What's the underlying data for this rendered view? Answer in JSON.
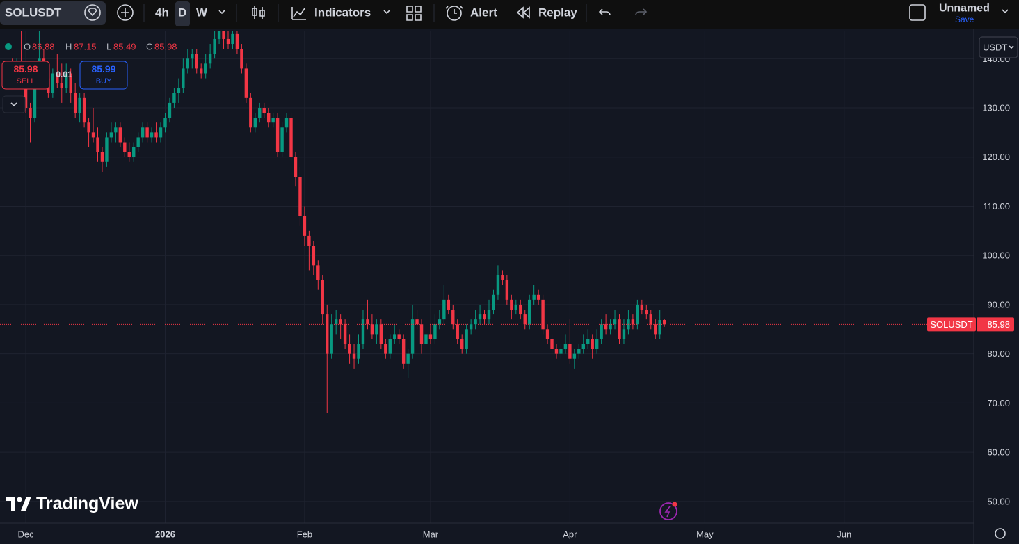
{
  "toolbar": {
    "symbol": "SOLUSDT",
    "intervals": [
      "4h",
      "D",
      "W"
    ],
    "indicators": "Indicators",
    "alert": "Alert",
    "replay": "Replay",
    "layout_name": "Unnamed",
    "save": "Save"
  },
  "legend": {
    "labels": [
      "O",
      "H",
      "L",
      "C"
    ]
  },
  "trade": {
    "sell_price": "85.98",
    "sell": "SELL",
    "spread": "0.01",
    "buy_price": "85.99",
    "buy": "BUY"
  },
  "currency": "USDT",
  "price_label": "SOLUSDT",
  "logo": "TradingView",
  "chart_data": {
    "type": "candlestick",
    "up_color": "#089981",
    "down_color": "#f23645",
    "xlim": [
      -0.73,
      215.8
    ],
    "ylim": [
      45.6,
      145.55
    ],
    "grid": true,
    "xticks": [
      {
        "value": 5,
        "label": "Dec"
      },
      {
        "value": 36,
        "label": "2026"
      },
      {
        "value": 67,
        "label": "Feb"
      },
      {
        "value": 95,
        "label": "Mar"
      },
      {
        "value": 126,
        "label": "Apr"
      },
      {
        "value": 156,
        "label": "May"
      },
      {
        "value": 187,
        "label": "Jun"
      }
    ],
    "yticks": [
      {
        "value": 50,
        "label": "50.00"
      },
      {
        "value": 60,
        "label": "60.00"
      },
      {
        "value": 70,
        "label": "70.00"
      },
      {
        "value": 80,
        "label": "80.00"
      },
      {
        "value": 90,
        "label": "90.00"
      },
      {
        "value": 100,
        "label": "100.00"
      },
      {
        "value": 110,
        "label": "110.00"
      },
      {
        "value": 120,
        "label": "120.00"
      },
      {
        "value": 130,
        "label": "130.00"
      },
      {
        "value": 140,
        "label": "140.00"
      }
    ],
    "candles": [
      [
        136,
        138,
        135,
        137
      ],
      [
        137,
        139,
        136,
        138
      ],
      [
        138,
        140,
        135,
        136
      ],
      [
        136,
        140,
        135,
        139
      ],
      [
        139,
        146,
        137,
        138
      ],
      [
        138,
        139,
        129,
        130
      ],
      [
        130,
        131,
        123,
        128
      ],
      [
        128,
        139,
        127,
        138
      ],
      [
        138,
        146,
        136,
        140
      ],
      [
        140,
        142,
        135,
        136
      ],
      [
        136,
        137,
        132,
        133
      ],
      [
        133,
        138,
        132,
        137
      ],
      [
        137,
        141,
        134,
        135
      ],
      [
        135,
        139,
        131,
        134
      ],
      [
        134,
        139,
        133,
        137
      ],
      [
        137,
        138,
        131,
        133
      ],
      [
        133,
        135,
        128,
        129
      ],
      [
        129,
        133,
        127,
        132
      ],
      [
        132,
        133,
        126,
        127
      ],
      [
        127,
        128,
        122,
        125
      ],
      [
        125,
        130,
        123,
        124
      ],
      [
        124,
        126,
        119,
        121
      ],
      [
        121,
        122,
        117,
        119
      ],
      [
        119,
        125,
        118,
        124
      ],
      [
        124,
        127,
        123,
        125
      ],
      [
        125,
        127,
        123,
        126
      ],
      [
        126,
        127,
        122,
        123
      ],
      [
        123,
        124,
        120,
        121
      ],
      [
        121,
        123,
        119,
        120
      ],
      [
        120,
        123,
        119,
        122
      ],
      [
        122,
        125,
        121,
        124
      ],
      [
        124,
        127,
        123,
        126
      ],
      [
        126,
        127,
        123,
        124
      ],
      [
        124,
        126,
        123,
        125
      ],
      [
        125,
        127,
        123,
        124
      ],
      [
        124,
        127,
        123,
        126
      ],
      [
        126,
        129,
        125,
        128
      ],
      [
        128,
        132,
        127,
        131
      ],
      [
        131,
        134,
        130,
        133
      ],
      [
        133,
        136,
        131,
        134
      ],
      [
        134,
        140,
        133,
        138
      ],
      [
        138,
        142,
        137,
        140
      ],
      [
        140,
        142,
        138,
        141
      ],
      [
        141,
        142,
        137,
        138
      ],
      [
        138,
        139,
        136,
        137
      ],
      [
        137,
        141,
        136,
        139
      ],
      [
        139,
        143,
        138,
        141
      ],
      [
        141,
        146,
        140,
        144
      ],
      [
        144,
        147,
        143,
        146
      ],
      [
        146,
        147,
        142,
        144
      ],
      [
        144,
        146,
        142,
        143
      ],
      [
        143,
        147,
        142,
        145
      ],
      [
        145,
        146,
        141,
        142
      ],
      [
        142,
        143,
        137,
        138
      ],
      [
        138,
        139,
        131,
        132
      ],
      [
        132,
        133,
        125,
        126
      ],
      [
        126,
        129,
        125,
        128
      ],
      [
        128,
        131,
        127,
        130
      ],
      [
        130,
        131,
        128,
        129
      ],
      [
        129,
        130,
        126,
        127
      ],
      [
        127,
        129,
        126,
        128
      ],
      [
        128,
        129,
        120,
        121
      ],
      [
        121,
        127,
        120,
        126
      ],
      [
        126,
        129,
        125,
        128
      ],
      [
        128,
        129,
        119,
        120
      ],
      [
        120,
        121,
        114,
        116
      ],
      [
        116,
        118,
        106,
        108
      ],
      [
        108,
        110,
        102,
        104
      ],
      [
        104,
        105,
        97,
        102
      ],
      [
        102,
        103,
        96,
        98
      ],
      [
        98,
        99,
        93,
        95
      ],
      [
        95,
        96,
        86,
        88
      ],
      [
        88,
        90,
        68,
        80
      ],
      [
        80,
        88,
        79,
        86
      ],
      [
        86,
        89,
        84,
        87
      ],
      [
        87,
        88,
        83,
        86
      ],
      [
        86,
        87,
        81,
        82
      ],
      [
        82,
        84,
        78,
        80
      ],
      [
        80,
        82,
        77,
        79
      ],
      [
        79,
        84,
        78,
        82
      ],
      [
        82,
        89,
        81,
        87
      ],
      [
        87,
        91,
        85,
        86
      ],
      [
        86,
        88,
        83,
        84
      ],
      [
        84,
        87,
        82,
        86
      ],
      [
        86,
        87,
        81,
        82
      ],
      [
        82,
        83,
        79,
        80
      ],
      [
        80,
        84,
        79,
        83
      ],
      [
        83,
        86,
        82,
        84
      ],
      [
        84,
        85,
        82,
        83
      ],
      [
        83,
        84,
        77,
        78
      ],
      [
        78,
        81,
        75,
        80
      ],
      [
        80,
        90,
        79,
        87
      ],
      [
        87,
        89,
        85,
        86
      ],
      [
        86,
        87,
        80,
        82
      ],
      [
        82,
        86,
        80,
        84
      ],
      [
        84,
        86,
        82,
        83
      ],
      [
        83,
        88,
        82,
        86
      ],
      [
        86,
        89,
        85,
        87
      ],
      [
        87,
        94,
        86,
        91
      ],
      [
        91,
        92,
        88,
        89
      ],
      [
        89,
        90,
        85,
        86
      ],
      [
        86,
        87,
        82,
        83
      ],
      [
        83,
        84,
        80,
        81
      ],
      [
        81,
        86,
        80,
        85
      ],
      [
        85,
        87,
        84,
        86
      ],
      [
        86,
        89,
        85,
        87
      ],
      [
        87,
        90,
        86,
        88
      ],
      [
        88,
        89,
        86,
        87
      ],
      [
        87,
        91,
        86,
        89
      ],
      [
        89,
        93,
        88,
        92
      ],
      [
        92,
        98,
        91,
        96
      ],
      [
        96,
        97,
        94,
        95
      ],
      [
        95,
        96,
        90,
        91
      ],
      [
        91,
        92,
        87,
        89
      ],
      [
        89,
        91,
        88,
        90
      ],
      [
        90,
        91,
        87,
        88
      ],
      [
        88,
        89,
        85,
        86
      ],
      [
        86,
        92,
        85,
        91
      ],
      [
        91,
        94,
        90,
        92
      ],
      [
        92,
        93,
        90,
        91
      ],
      [
        91,
        92,
        84,
        85
      ],
      [
        85,
        86,
        82,
        83
      ],
      [
        83,
        84,
        80,
        81
      ],
      [
        81,
        82,
        79,
        80
      ],
      [
        80,
        82,
        79,
        81
      ],
      [
        81,
        84,
        80,
        82
      ],
      [
        82,
        87,
        78,
        79
      ],
      [
        79,
        81,
        77,
        80
      ],
      [
        80,
        82,
        79,
        81
      ],
      [
        81,
        84,
        80,
        82
      ],
      [
        82,
        85,
        81,
        83
      ],
      [
        83,
        84,
        79,
        81
      ],
      [
        81,
        85,
        80,
        83
      ],
      [
        83,
        87,
        82,
        86
      ],
      [
        86,
        88,
        84,
        85
      ],
      [
        85,
        87,
        84,
        86
      ],
      [
        86,
        89,
        85,
        87
      ],
      [
        87,
        88,
        82,
        83
      ],
      [
        83,
        87,
        82,
        85
      ],
      [
        85,
        89,
        84,
        87
      ],
      [
        87,
        88,
        85,
        86
      ],
      [
        86,
        91,
        85,
        90
      ],
      [
        90,
        91,
        88,
        89
      ],
      [
        89,
        90,
        87,
        88
      ],
      [
        88,
        89,
        85,
        86
      ],
      [
        86,
        87,
        83,
        84
      ],
      [
        84,
        89,
        83,
        86.88
      ],
      [
        86.88,
        87.15,
        85.49,
        85.98
      ]
    ]
  }
}
